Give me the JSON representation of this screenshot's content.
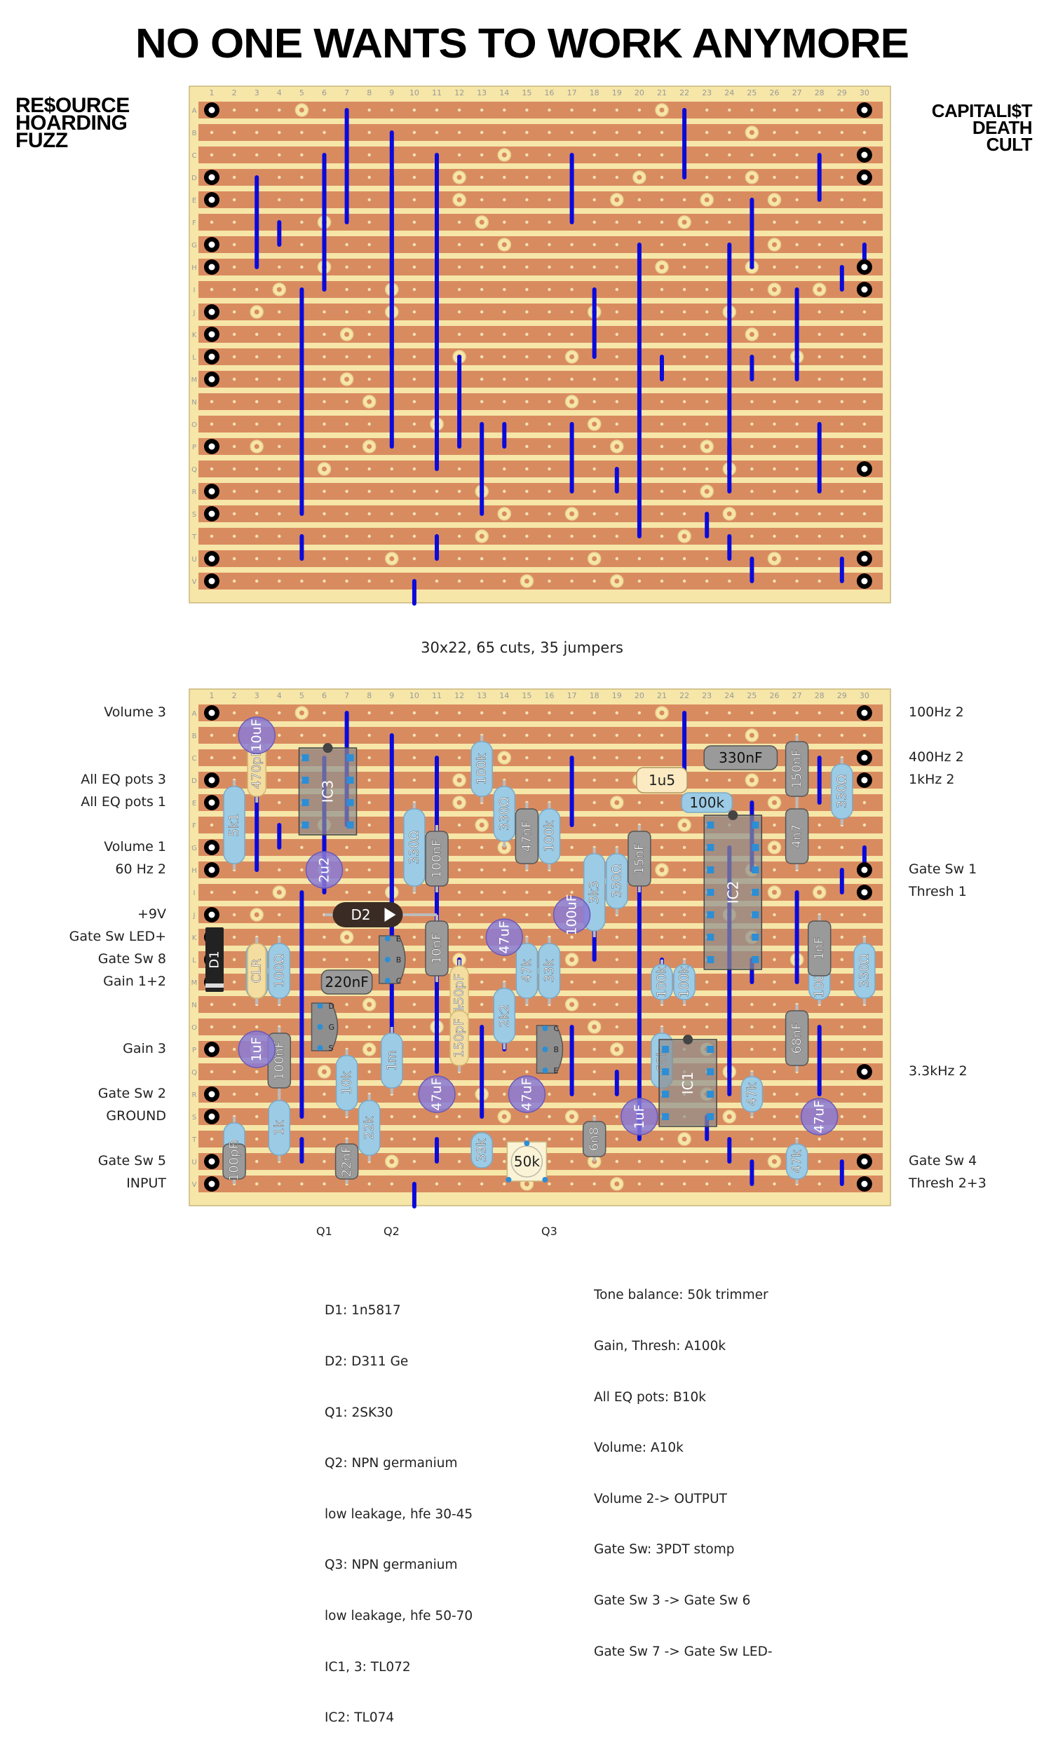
{
  "title": "NO ONE WANTS TO WORK ANYMORE",
  "top_left_title": [
    "RE$OURCE",
    "HOARDING",
    "FUZZ"
  ],
  "top_right_title": [
    "CAPITALI$T",
    "DEATH",
    "CULT"
  ],
  "board_stats": "30x22, 65 cuts, 35 jumpers",
  "grid": {
    "columns": [
      "1",
      "2",
      "3",
      "4",
      "5",
      "6",
      "7",
      "8",
      "9",
      "10",
      "11",
      "12",
      "13",
      "14",
      "15",
      "16",
      "17",
      "18",
      "19",
      "20",
      "21",
      "22",
      "23",
      "24",
      "25",
      "26",
      "27",
      "28",
      "29",
      "30"
    ],
    "rows": [
      "A",
      "B",
      "C",
      "D",
      "E",
      "F",
      "G",
      "H",
      "I",
      "J",
      "K",
      "L",
      "M",
      "N",
      "O",
      "P",
      "Q",
      "R",
      "S",
      "T",
      "U",
      "V"
    ]
  },
  "wire_labels_left": [
    {
      "row": 1,
      "text": "Volume 3"
    },
    {
      "row": 4,
      "text": "All EQ pots 3"
    },
    {
      "row": 5,
      "text": "All EQ pots 1"
    },
    {
      "row": 7,
      "text": "Volume 1"
    },
    {
      "row": 8,
      "text": "60 Hz 2"
    },
    {
      "row": 10,
      "text": "+9V"
    },
    {
      "row": 11,
      "text": "Gate Sw LED+"
    },
    {
      "row": 12,
      "text": "Gate Sw 8"
    },
    {
      "row": 13,
      "text": "Gain 1+2"
    },
    {
      "row": 16,
      "text": "Gain 3"
    },
    {
      "row": 18,
      "text": "Gate Sw 2"
    },
    {
      "row": 19,
      "text": "GROUND"
    },
    {
      "row": 21,
      "text": "Gate Sw 5"
    },
    {
      "row": 22,
      "text": "INPUT"
    }
  ],
  "wire_labels_right": [
    {
      "row": 1,
      "text": "100Hz 2"
    },
    {
      "row": 3,
      "text": "400Hz 2"
    },
    {
      "row": 4,
      "text": "1kHz 2"
    },
    {
      "row": 8,
      "text": "Gate Sw 1"
    },
    {
      "row": 9,
      "text": "Thresh 1"
    },
    {
      "row": 17,
      "text": "3.3kHz 2"
    },
    {
      "row": 21,
      "text": "Gate Sw 4"
    },
    {
      "row": 22,
      "text": "Thresh 2+3"
    }
  ],
  "components": {
    "resistors": [
      "5k1",
      "100Ω",
      "330Ω",
      "100k",
      "330Ω",
      "100k",
      "100k",
      "330Ω",
      "3k3",
      "330Ω",
      "100k",
      "100k",
      "100Ω",
      "47k",
      "33k",
      "2k2",
      "10k",
      "22k",
      "1m",
      "1k",
      "1m",
      "39k",
      "68k",
      "47k",
      "47k",
      "100k",
      "330Ω"
    ],
    "capacitors_film": [
      "470pF",
      "150pF",
      "150pF"
    ],
    "capacitors_box": [
      "100nF",
      "47nF",
      "330nF",
      "150nF",
      "15nF",
      "4n7",
      "10nF",
      "220nF",
      "1nF",
      "100nF",
      "68nF",
      "22nF",
      "6n8",
      "100pF"
    ],
    "capacitors_electrolytic": [
      "10uF",
      "2u2",
      "47uF",
      "100uF",
      "1uF",
      "47uF",
      "47uF",
      "1uF",
      "47uF"
    ],
    "tantalum": "1u5",
    "diodes": [
      "D1",
      "D2"
    ],
    "led_resistor": "CLR",
    "ics": [
      "IC3",
      "IC2",
      "IC1"
    ],
    "trimmer": "50k",
    "transistor_pins_q1": [
      "D",
      "G",
      "S"
    ],
    "transistor_pins_q2": [
      "E",
      "B",
      "C"
    ],
    "transistor_pins_q3": [
      "C",
      "B",
      "E"
    ]
  },
  "transistor_labels": [
    "Q1",
    "Q2",
    "Q3"
  ],
  "notes_left": [
    "D1: 1n5817",
    "D2: D311 Ge",
    "Q1: 2SK30",
    "Q2: NPN germanium",
    "low leakage, hfe 30-45",
    "Q3: NPN germanium",
    "low leakage, hfe 50-70",
    "IC1, 3: TL072",
    "IC2: TL074"
  ],
  "notes_right": [
    "Tone balance: 50k trimmer",
    "Gain, Thresh: A100k",
    "All EQ pots: B10k",
    "Volume: A10k",
    "Volume 2-> OUTPUT",
    "Gate Sw: 3PDT stomp",
    "Gate Sw 3 -> Gate Sw 6",
    "Gate Sw 7 -> Gate Sw LED-"
  ],
  "colors": {
    "board": "#f6e6a8",
    "strip": "#d98b60",
    "jumper": "#0a0adc",
    "film_resistor": "#9ccbe6",
    "electrolytic": "#8a7ad6",
    "box_cap": "#9a9a9a"
  }
}
